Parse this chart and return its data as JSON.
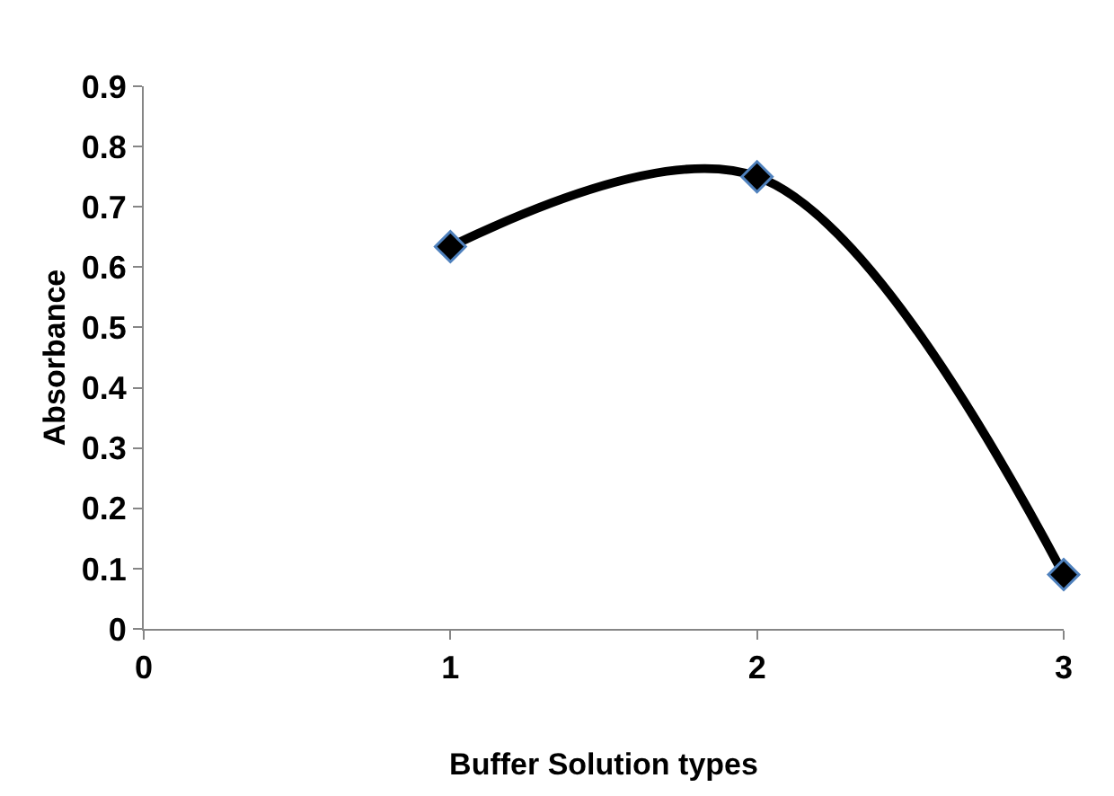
{
  "chart_data": {
    "type": "line",
    "xlabel": "Buffer Solution types",
    "ylabel": "Absorbance",
    "x": [
      1,
      2,
      3
    ],
    "series": [
      {
        "color": "#000000",
        "values": [
          0.634,
          0.75,
          0.09
        ]
      }
    ],
    "xlim": [
      0,
      3
    ],
    "xticks": [
      0,
      1,
      2,
      3
    ],
    "ylim": [
      0,
      0.9
    ],
    "yticks": [
      0,
      0.1,
      0.2,
      0.3,
      0.4,
      0.5,
      0.6,
      0.7,
      0.8,
      0.9
    ],
    "legend": false,
    "marker": "diamond",
    "line_style": "solid"
  }
}
